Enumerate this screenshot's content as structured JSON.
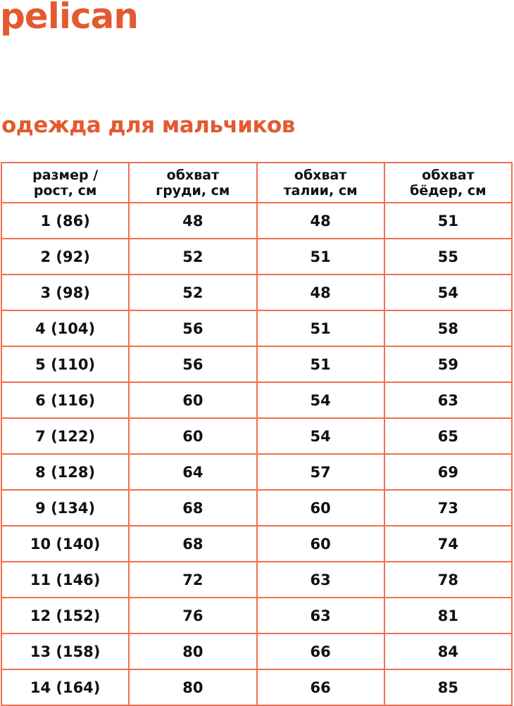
{
  "brand": {
    "logo": "pelican",
    "color": "#e35a30"
  },
  "title": "одежда для мальчиков",
  "table": {
    "headers": [
      [
        "размер /",
        "рост, см"
      ],
      [
        "обхват",
        "груди, см"
      ],
      [
        "обхват",
        "талии, см"
      ],
      [
        "обхват",
        "бёдер, см"
      ]
    ],
    "rows": [
      [
        "1 (86)",
        "48",
        "48",
        "51"
      ],
      [
        "2 (92)",
        "52",
        "51",
        "55"
      ],
      [
        "3 (98)",
        "52",
        "48",
        "54"
      ],
      [
        "4 (104)",
        "56",
        "51",
        "58"
      ],
      [
        "5 (110)",
        "56",
        "51",
        "59"
      ],
      [
        "6 (116)",
        "60",
        "54",
        "63"
      ],
      [
        "7 (122)",
        "60",
        "54",
        "65"
      ],
      [
        "8 (128)",
        "64",
        "57",
        "69"
      ],
      [
        "9 (134)",
        "68",
        "60",
        "73"
      ],
      [
        "10 (140)",
        "68",
        "60",
        "74"
      ],
      [
        "11 (146)",
        "72",
        "63",
        "78"
      ],
      [
        "12 (152)",
        "76",
        "63",
        "81"
      ],
      [
        "13 (158)",
        "80",
        "66",
        "84"
      ],
      [
        "14 (164)",
        "80",
        "66",
        "85"
      ]
    ]
  }
}
